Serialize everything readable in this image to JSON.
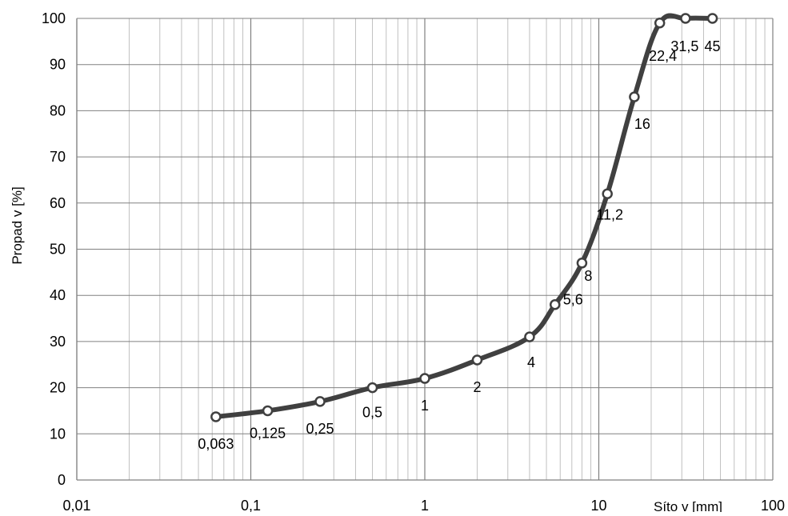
{
  "chart_data": {
    "type": "line",
    "xlabel": "Síto v [mm]",
    "ylabel": "Propad v [%]",
    "xscale": "log",
    "xlim": [
      0.01,
      100
    ],
    "ylim": [
      0,
      100
    ],
    "x_ticks": [
      "0,01",
      "0,1",
      "1",
      "10",
      "100"
    ],
    "y_ticks": [
      "0",
      "10",
      "20",
      "30",
      "40",
      "50",
      "60",
      "70",
      "80",
      "90",
      "100"
    ],
    "grid": true,
    "legend": "none",
    "series": [
      {
        "x": [
          0.063,
          0.125,
          0.25,
          0.5,
          1,
          2,
          4,
          5.6,
          8,
          11.2,
          16,
          22.4,
          31.5,
          45
        ],
        "y": [
          13.7,
          15,
          17,
          20,
          22,
          26,
          31,
          38,
          47,
          62,
          83,
          99,
          100,
          100
        ],
        "point_labels": [
          "0,063",
          "0,125",
          "0,25",
          "0,5",
          "1",
          "2",
          "4",
          "5,6",
          "8",
          "11,2",
          "16",
          "22,4",
          "31,5",
          "45"
        ]
      }
    ],
    "colors": {
      "line": "#404040",
      "marker_fill": "#ffffff",
      "grid_major": "#808080",
      "grid_minor": "#c0c0c0"
    }
  }
}
